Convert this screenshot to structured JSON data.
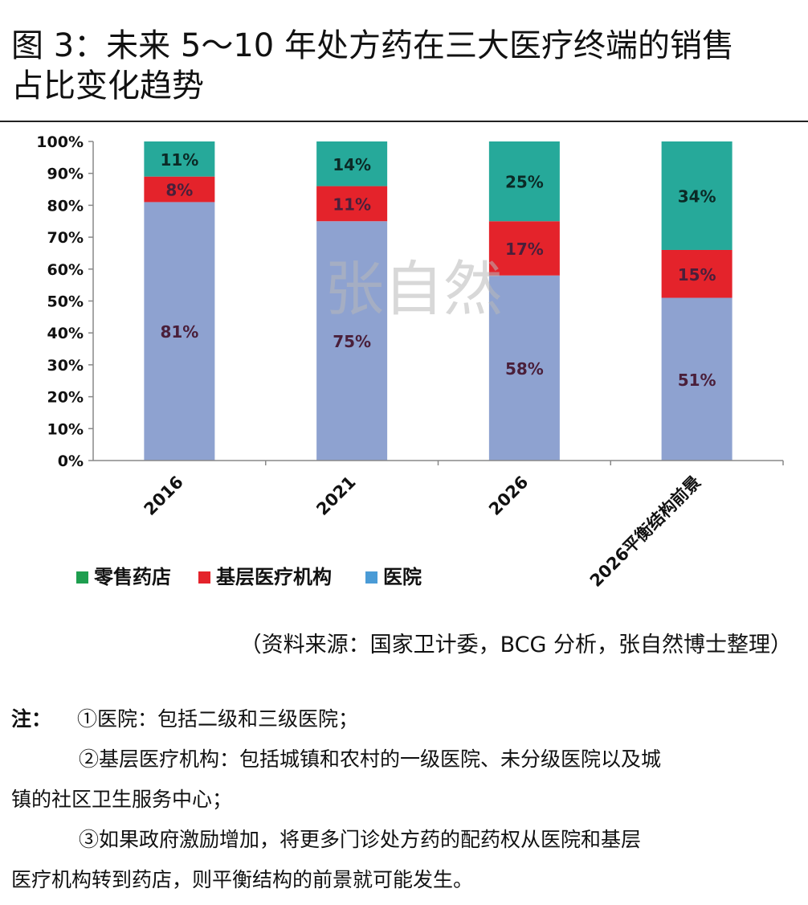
{
  "title_line1": "图 3：未来 5～10 年处方药在三大医疗终端的销售",
  "title_line2": "占比变化趋势",
  "watermark": "张自然",
  "source": "（资料来源：国家卫计委，BCG 分析，张自然博士整理）",
  "notes": {
    "label": "注：",
    "line1": "①医院：包括二级和三级医院；",
    "line2": "②基层医疗机构：包括城镇和农村的一级医院、未分级医院以及城",
    "line3": "镇的社区卫生服务中心；",
    "line4": "③如果政府激励增加，将更多门诊处方药的配药权从医院和基层",
    "line5": "医疗机构转到药店，则平衡结构的前景就可能发生。"
  },
  "colors": {
    "hospital": "#8EA2D0",
    "grassroots": "#E4232B",
    "retail": "#26A99A",
    "legend_hospital": "#4A9BD6",
    "legend_grassroots": "#E4232B",
    "legend_retail": "#1E9E4F"
  },
  "chart_data": {
    "type": "bar",
    "stacked": true,
    "categories": [
      "2016",
      "2021",
      "2026",
      "2026平衡结构前景"
    ],
    "series": [
      {
        "name": "医院",
        "values": [
          81,
          75,
          58,
          51
        ],
        "labels": [
          "81%",
          "75%",
          "58%",
          "51%"
        ]
      },
      {
        "name": "基层医疗机构",
        "values": [
          8,
          11,
          17,
          15
        ],
        "labels": [
          "8%",
          "11%",
          "17%",
          "15%"
        ]
      },
      {
        "name": "零售药店",
        "values": [
          11,
          14,
          25,
          34
        ],
        "labels": [
          "11%",
          "14%",
          "25%",
          "34%"
        ]
      }
    ],
    "legend": [
      "零售药店",
      "基层医疗机构",
      "医院"
    ],
    "legend_position": "bottom-left",
    "y_ticks": [
      "0%",
      "10%",
      "20%",
      "30%",
      "40%",
      "50%",
      "60%",
      "70%",
      "80%",
      "90%",
      "100%"
    ],
    "ylim": [
      0,
      100
    ],
    "grid": false
  }
}
